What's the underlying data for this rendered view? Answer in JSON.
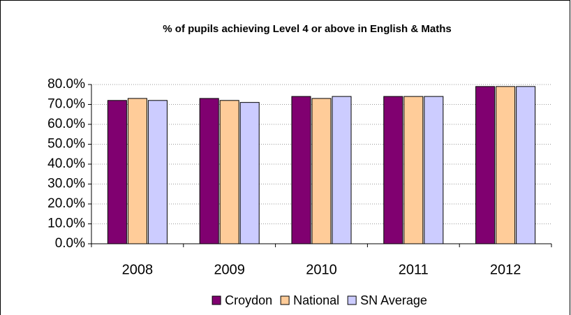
{
  "chart_data": {
    "type": "bar",
    "title": "% of pupils achieving Level 4 or above in English & Maths",
    "categories": [
      "2008",
      "2009",
      "2010",
      "2011",
      "2012"
    ],
    "series": [
      {
        "name": "Croydon",
        "color": "#800070",
        "values": [
          72,
          73,
          74,
          74,
          79
        ]
      },
      {
        "name": "National",
        "color": "#ffcc99",
        "values": [
          73,
          72,
          73,
          74,
          79
        ]
      },
      {
        "name": "SN Average",
        "color": "#ccccff",
        "values": [
          72,
          71,
          74,
          74,
          79
        ]
      }
    ],
    "ylim": [
      0,
      80
    ],
    "yticks": [
      {
        "value": 0,
        "label": "0.0%"
      },
      {
        "value": 10,
        "label": "10.0%"
      },
      {
        "value": 20,
        "label": "20.0%"
      },
      {
        "value": 30,
        "label": "30.0%"
      },
      {
        "value": 40,
        "label": "40.0%"
      },
      {
        "value": 50,
        "label": "50.0%"
      },
      {
        "value": 60,
        "label": "60.0%"
      },
      {
        "value": 70,
        "label": "70.0%"
      },
      {
        "value": 80,
        "label": "80.0%"
      }
    ],
    "grid": true,
    "legend": "bottom"
  }
}
